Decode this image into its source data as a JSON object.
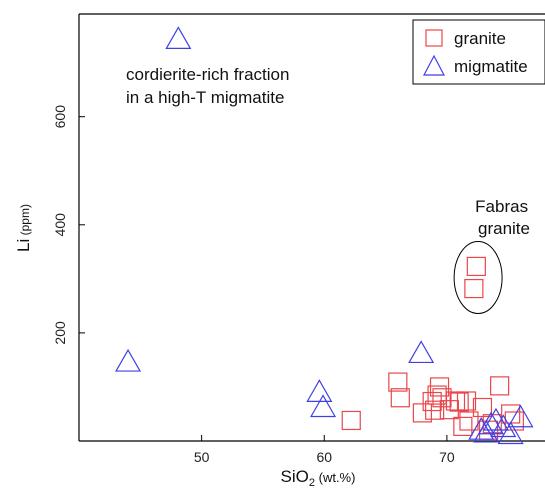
{
  "chart_data": {
    "type": "scatter",
    "title": "",
    "xlabel": {
      "main": "SiO",
      "sub": "2",
      "unit": " (wt.%)"
    },
    "ylabel": {
      "main": "Li",
      "unit": " (ppm)"
    },
    "xlim": [
      40,
      78
    ],
    "ylim": [
      0,
      790
    ],
    "xticks": [
      50,
      60,
      70
    ],
    "yticks": [
      200,
      400,
      600
    ],
    "grid": false,
    "legend_position": "top-right",
    "series": [
      {
        "name": "granite",
        "marker": "square",
        "color": "#e8474c",
        "points": [
          [
            62.2,
            38
          ],
          [
            66.0,
            109
          ],
          [
            66.2,
            80
          ],
          [
            68.0,
            52
          ],
          [
            68.8,
            73
          ],
          [
            69.0,
            57
          ],
          [
            69.2,
            85
          ],
          [
            69.4,
            100
          ],
          [
            69.6,
            80
          ],
          [
            70.2,
            58
          ],
          [
            70.7,
            74
          ],
          [
            71.0,
            72
          ],
          [
            71.3,
            27
          ],
          [
            71.6,
            74
          ],
          [
            71.8,
            37
          ],
          [
            72.2,
            282
          ],
          [
            72.4,
            323
          ],
          [
            72.9,
            62
          ],
          [
            73.4,
            20
          ],
          [
            73.7,
            32
          ],
          [
            74.3,
            102
          ],
          [
            75.2,
            50
          ],
          [
            75.5,
            37
          ]
        ]
      },
      {
        "name": "migmatite",
        "marker": "triangle",
        "color": "#3f3fe6",
        "points": [
          [
            44.0,
            146
          ],
          [
            48.1,
            743
          ],
          [
            59.6,
            90
          ],
          [
            59.9,
            62
          ],
          [
            67.9,
            162
          ],
          [
            72.8,
            20
          ],
          [
            73.2,
            15
          ],
          [
            73.6,
            30
          ],
          [
            74.0,
            37
          ],
          [
            74.6,
            25
          ],
          [
            75.2,
            12
          ],
          [
            76.0,
            43
          ]
        ]
      }
    ],
    "annotations": [
      {
        "lines": [
          "cordierite-rich fraction",
          "in a high-T migmatite"
        ],
        "at": [
          53,
          660
        ]
      },
      {
        "lines": [
          "Fabras",
          "granite"
        ],
        "at": [
          75.5,
          395
        ]
      }
    ]
  }
}
